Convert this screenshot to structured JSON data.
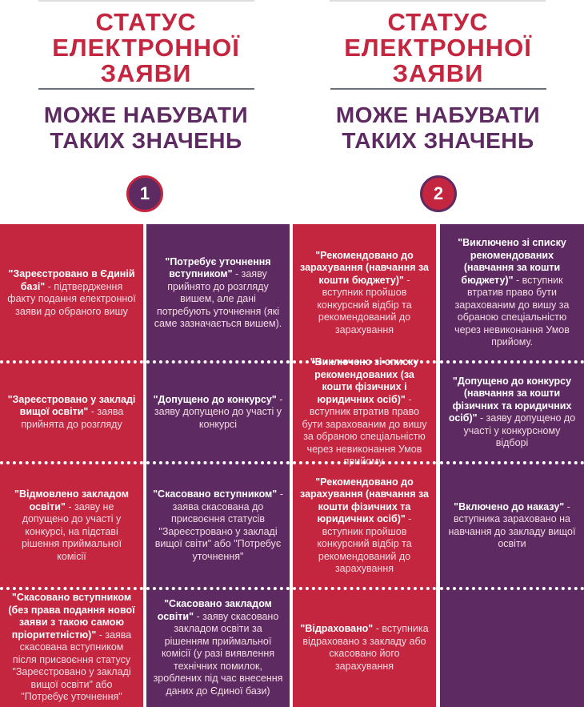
{
  "colors": {
    "red": "#c4253f",
    "purple": "#5e2a62"
  },
  "headers": [
    {
      "title_lines": [
        "СТАТУС",
        "ЕЛЕКТРОННОЇ",
        "ЗАЯВИ"
      ],
      "subtitle_lines": [
        "МОЖЕ НАБУВАТИ",
        "ТАКИХ ЗНАЧЕНЬ"
      ],
      "number": "1"
    },
    {
      "title_lines": [
        "СТАТУС",
        "ЕЛЕКТРОННОЇ",
        "ЗАЯВИ"
      ],
      "subtitle_lines": [
        "МОЖЕ НАБУВАТИ",
        "ТАКИХ ЗНАЧЕНЬ"
      ],
      "number": "2"
    }
  ],
  "columns": [
    {
      "cells": [
        {
          "bold": "\"Зареєстровано в Єдиній базі\"",
          "text": " - підтвердження факту подання електронної заяви до обраного вишу"
        },
        {
          "bold": "\"Зареєстровано у закладі вищої освіти\"",
          "text": " - заява прийнята до розгляду"
        },
        {
          "bold": "\"Відмовлено закладом освіти\"",
          "text": " - заяву не допущено до участі у конкурсі, на підставі рішення приймальної комісії"
        },
        {
          "bold": "\"Скасовано вступником (без права подання нової заяви з такою самою пріоритетністю)\"",
          "text": " - заява скасована вступником після присвоєння статусу \"Зареєстровано у закладі вищої освіти\" або \"Потребує уточнення\""
        }
      ]
    },
    {
      "cells": [
        {
          "bold": "\"Потребує уточнення вступником\"",
          "text": " - заяву прийнято до розгляду вишем, але дані потребують уточнення (які саме зазначається вишем)."
        },
        {
          "bold": "\"Допущено до конкурсу\"",
          "text": " - заяву допущено до участі у конкурсі"
        },
        {
          "bold": "\"Скасовано вступником\"",
          "text": " - заява скасована до присвоєння статусів \"Зареєстровано у закладі вищої світи\" або \"Потребує уточнення\""
        },
        {
          "bold": "\"Скасовано закладом освіти\"",
          "text": " - заяву скасовано закладом освіти за рішенням приймальної комісії (у разі виявлення технічних помилок, зроблених під час внесення даних до Єдиної бази)"
        }
      ]
    },
    {
      "cells": [
        {
          "bold": "\"Рекомендовано до зарахування (навчання за кошти бюджету)\"",
          "text": " - вступник пройшов конкурсний відбір та рекомендований до зарахування"
        },
        {
          "bold": "\"Виключено зі списку рекомендованих (за кошти фізичних і юридичних осіб)\"",
          "text": " - вступник втратив право бути зарахованим до вишу за обраною спеціальністю через невиконання Умов прийому."
        },
        {
          "bold": "\"Рекомендовано до зарахування (навчання за кошти фізичних та юридичних осіб)\"",
          "text": " - вступник пройшов конкурсний відбір та рекомендований до зарахування"
        },
        {
          "bold": "\"Відраховано\"",
          "text": " - вступника відраховано з закладу або скасовано його зарахування"
        }
      ]
    },
    {
      "cells": [
        {
          "bold": "\"Виключено зі списку рекомендованих (навчання за кошти бюджету)\"",
          "text": " - вступник втратив право бути зарахованим до вишу за обраною спеціальністю через невиконання Умов прийому."
        },
        {
          "bold": "\"Допущено до конкурсу (навчання за кошти фізичних та юридичних осіб)\"",
          "text": " - заяву допущено до участі у конкурсному відборі"
        },
        {
          "bold": "\"Включено до наказу\"",
          "text": " - вступника зараховано на навчання до закладу вищої освіти"
        },
        {
          "bold": "",
          "text": ""
        }
      ]
    }
  ]
}
